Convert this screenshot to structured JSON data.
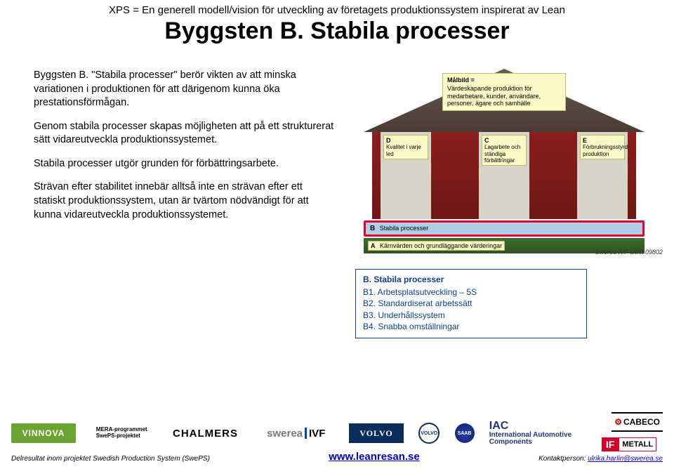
{
  "header": {
    "prefix": "XPS = En generell modell/vision för utveckling av företagets produktionssystem inspirerat av Lean",
    "title": "Byggsten B. Stabila processer"
  },
  "body": {
    "p1": "Byggsten B. \"Stabila processer\" berör vikten av att minska variationen i produktionen för att därigenom kunna öka prestationsförmågan.",
    "p2": "Genom stabila processer skapas möjligheten att på ett strukturerat sätt vidareutveckla produktionssystemet.",
    "p3": "Stabila processer utgör grunden för förbättringsarbete.",
    "p4": "Strävan efter stabilitet innebär alltså inte en strävan efter ett statiskt produktionssystem, utan är tvärtom nödvändigt för att kunna vidareutveckla produktionssystemet."
  },
  "diagram": {
    "roof": {
      "head": "Målbild =",
      "text": "Värdeskapande produktion för medarbetare, kunder, användare, personer, ägare och samhälle"
    },
    "pillars": {
      "d": {
        "code": "D",
        "text": "Kvalitet i varje led"
      },
      "c": {
        "code": "C",
        "text": "Lagarbete och ständiga förbättringar"
      },
      "e": {
        "code": "E",
        "text": "Förbrukningsstyrd produktion"
      }
    },
    "bandB": {
      "code": "B",
      "text": "Stabila processer"
    },
    "bandA": {
      "code": "A",
      "text": "Kärnvärden och grundläggande värderingar"
    },
    "credit": "Swerea IVF-skrift 09802"
  },
  "box": {
    "title": "B. Stabila processer",
    "i1": "B1. Arbetsplatsutveckling – 5S",
    "i2": "B2. Standardiserat arbetssätt",
    "i3": "B3. Underhållssystem",
    "i4": "B4. Snabba omställningar"
  },
  "footer": {
    "vinnova": "VINNOVA",
    "mera_l1": "MERA-programmet",
    "mera_l2": "SwePS-projektet",
    "chalmers": "CHALMERS",
    "swerea_a": "swerea",
    "swerea_b": "IVF",
    "volvotxt": "VOLVO",
    "volvoround": "VOLVO",
    "saab": "SAAB",
    "iac_big": "IAC",
    "iac_small": "International Automotive Components",
    "cabeco": "CABECO",
    "ifmetall_a": "IF",
    "ifmetall_b": "METALL",
    "left": "Delresultat inom projektet Swedish Production System (SwePS)",
    "center": "www.leanresan.se",
    "right_a": "Kontaktperson: ",
    "right_b": "ulrika.harlin@swerea.se"
  }
}
